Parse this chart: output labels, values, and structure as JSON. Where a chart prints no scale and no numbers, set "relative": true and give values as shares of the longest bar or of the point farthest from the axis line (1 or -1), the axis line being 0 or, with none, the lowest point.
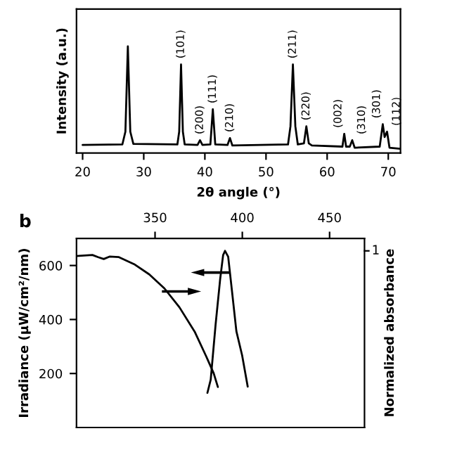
{
  "chart_data": [
    {
      "type": "line",
      "relative": true,
      "xlabel": "2θ angle (°)",
      "ylabel": "Intensity (a.u.)",
      "color": "#000000",
      "xlim": [
        19,
        72
      ],
      "xticks": [
        20,
        30,
        40,
        50,
        60,
        70
      ],
      "tick_labels": "x",
      "x": [
        20,
        26.5,
        27.0,
        27.4,
        27.8,
        28.3,
        35.5,
        35.8,
        36.1,
        36.4,
        36.7,
        38.8,
        39.2,
        39.6,
        40.9,
        41.3,
        41.7,
        43.7,
        44.1,
        44.5,
        53.6,
        54.0,
        54.4,
        54.8,
        55.2,
        56.2,
        56.6,
        57.0,
        57.5,
        62.5,
        62.8,
        63.1,
        63.7,
        64.1,
        64.5,
        68.6,
        69.1,
        69.4,
        69.8,
        70.2,
        72
      ],
      "values": [
        0.075,
        0.08,
        0.2,
        1.0,
        0.2,
        0.085,
        0.08,
        0.2,
        0.83,
        0.2,
        0.08,
        0.075,
        0.12,
        0.075,
        0.08,
        0.41,
        0.08,
        0.075,
        0.14,
        0.07,
        0.08,
        0.25,
        0.83,
        0.25,
        0.08,
        0.09,
        0.25,
        0.09,
        0.07,
        0.06,
        0.18,
        0.06,
        0.06,
        0.12,
        0.05,
        0.06,
        0.27,
        0.15,
        0.2,
        0.05,
        0.04
      ],
      "annotations": [
        {
          "text": "(101)",
          "x": 36.1,
          "y": 0.83
        },
        {
          "text": "(200)",
          "x": 39.2,
          "y": 0.12
        },
        {
          "text": "(111)",
          "x": 41.3,
          "y": 0.41
        },
        {
          "text": "(210)",
          "x": 44.1,
          "y": 0.14
        },
        {
          "text": "(211)",
          "x": 54.4,
          "y": 0.83
        },
        {
          "text": "(220)",
          "x": 56.6,
          "y": 0.25
        },
        {
          "text": "(002)",
          "x": 62.8,
          "y": 0.18
        },
        {
          "text": "(310)",
          "x": 64.1,
          "y": 0.12
        },
        {
          "text": "(301)",
          "x": 69.1,
          "y": 0.27
        },
        {
          "text": "(112)",
          "x": 69.8,
          "y": 0.2
        }
      ]
    },
    {
      "type": "line",
      "ylabel": "Irradiance (μW/cm²/nm)",
      "annotations": [
        "b"
      ],
      "xlim": [
        305,
        470
      ],
      "xticks": [
        350,
        400,
        450
      ],
      "ylim": [
        0,
        700
      ],
      "yticks": [
        200,
        400,
        600
      ],
      "series": [
        {
          "color": "#000000",
          "x": [
            305,
            314.1,
            317.4,
            320.6,
            323.9,
            329.3,
            338,
            346.7,
            355.4,
            364,
            372.7,
            379.2,
            383.6,
            386
          ],
          "values": [
            635,
            639,
            631,
            624,
            633,
            631,
            605,
            567,
            515,
            445,
            355,
            265,
            201,
            150
          ]
        }
      ]
    },
    {
      "type": "line",
      "relative": true,
      "y2label": "Normalized absorbance",
      "annotations": [
        "1"
      ],
      "xlim": [
        305,
        470
      ],
      "tick_labels": false,
      "series": [
        {
          "color": "#000000",
          "axis": "y2",
          "x": [
            380,
            381.9,
            384.7,
            387.3,
            389,
            390.1,
            391.9,
            394,
            396.6,
            399.9,
            403.1
          ],
          "values": [
            0.196,
            0.271,
            0.584,
            0.839,
            0.976,
            1.0,
            0.967,
            0.78,
            0.545,
            0.408,
            0.231
          ]
        }
      ]
    }
  ]
}
